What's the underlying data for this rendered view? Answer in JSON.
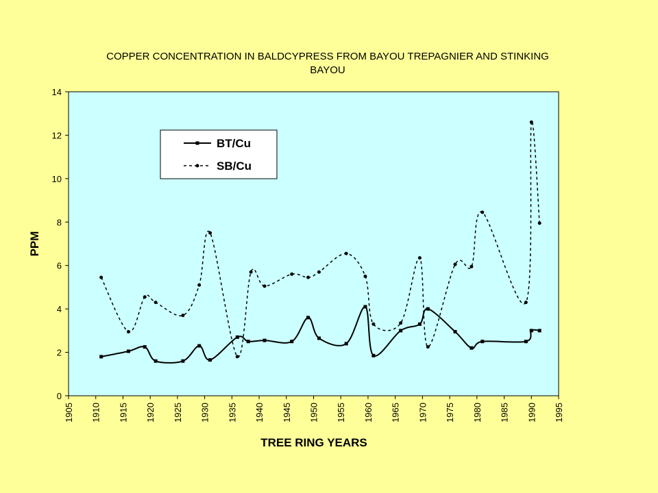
{
  "chart_data": {
    "type": "line",
    "title_lines": [
      "COPPER CONCENTRATION IN BALDCYPRESS FROM BAYOU TREPAGNIER AND STINKING",
      "BAYOU"
    ],
    "xlabel": "TREE RING YEARS",
    "ylabel": "PPM",
    "xlim": [
      1905,
      1995
    ],
    "ylim": [
      0,
      14
    ],
    "x_ticks": [
      "1905",
      "1910",
      "1915",
      "1920",
      "1925",
      "1930",
      "1935",
      "1940",
      "1945",
      "1950",
      "1955",
      "1960",
      "1965",
      "1970",
      "1975",
      "1980",
      "1985",
      "1990",
      "1995"
    ],
    "y_ticks": [
      "0",
      "2",
      "4",
      "6",
      "8",
      "10",
      "12",
      "14"
    ],
    "grid": false,
    "legend_position": "top-left",
    "plot_background": "#ccffff",
    "series": [
      {
        "name": "BT/Cu",
        "style": "solid",
        "marker": "square",
        "color": "#000000",
        "x": [
          1911,
          1916,
          1919,
          1921,
          1926,
          1929,
          1931,
          1936,
          1938,
          1941,
          1946,
          1949,
          1951,
          1956,
          1959.5,
          1961,
          1966,
          1969.5,
          1971,
          1976,
          1979,
          1981,
          1989,
          1990,
          1991.5
        ],
        "y": [
          1.8,
          2.05,
          2.25,
          1.6,
          1.6,
          2.3,
          1.65,
          2.7,
          2.5,
          2.55,
          2.5,
          3.6,
          2.65,
          2.4,
          4.1,
          1.85,
          3.0,
          3.3,
          4.0,
          2.95,
          2.2,
          2.5,
          2.5,
          3.0,
          3.0
        ]
      },
      {
        "name": "SB/Cu",
        "style": "dashed",
        "marker": "dot",
        "color": "#000000",
        "x": [
          1911,
          1916,
          1919,
          1921,
          1926,
          1929,
          1931,
          1936,
          1938.5,
          1941,
          1946,
          1949,
          1951,
          1956,
          1959.5,
          1961,
          1966,
          1969.5,
          1971,
          1976,
          1979,
          1981,
          1989,
          1990,
          1991.5
        ],
        "y": [
          5.45,
          2.95,
          4.55,
          4.3,
          3.7,
          5.1,
          7.5,
          1.8,
          5.7,
          5.05,
          5.6,
          5.45,
          5.7,
          6.55,
          5.5,
          3.3,
          3.35,
          6.35,
          2.25,
          6.05,
          5.95,
          8.45,
          4.3,
          12.6,
          7.95
        ]
      }
    ]
  }
}
